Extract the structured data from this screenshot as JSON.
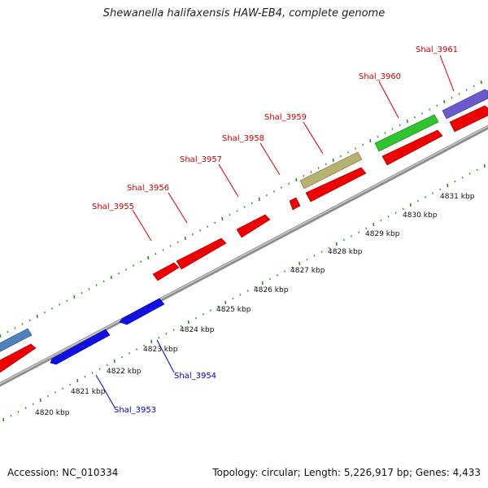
{
  "title": "Shewanella halifaxensis HAW-EB4, complete genome",
  "footer": {
    "accession": "Accession: NC_010334",
    "summary": "Topology: circular; Length: 5,226,917 bp; Genes: 4,433"
  },
  "colors": {
    "forward": "#ff0000",
    "reverse": "#0000ff",
    "backbone": "#999999",
    "tick": "#2b8a2b",
    "label_forward": "#cc0000",
    "label_reverse": "#0000cc",
    "steelblue_gene": "#4f81bd",
    "green_gene": "#2ec52e",
    "olive_gene": "#b5b071",
    "purple_gene": "#6a5acd"
  },
  "scale": {
    "kbp_labels": [
      "4820 kbp",
      "4821 kbp",
      "4822 kbp",
      "4823 kbp",
      "4824 kbp",
      "4825 kbp",
      "4826 kbp",
      "4827 kbp",
      "4828 kbp",
      "4829 kbp",
      "4830 kbp",
      "4831 kbp"
    ]
  },
  "genes": [
    {
      "locus": "Shal_3953",
      "strand": "reverse"
    },
    {
      "locus": "Shal_3954",
      "strand": "reverse"
    },
    {
      "locus": "Shal_3955",
      "strand": "forward"
    },
    {
      "locus": "Shal_3956",
      "strand": "forward"
    },
    {
      "locus": "Shal_3957",
      "strand": "forward"
    },
    {
      "locus": "Shal_3958",
      "strand": "forward"
    },
    {
      "locus": "Shal_3959",
      "strand": "forward"
    },
    {
      "locus": "Shal_3960",
      "strand": "forward"
    },
    {
      "locus": "Shal_3961",
      "strand": "forward"
    }
  ]
}
